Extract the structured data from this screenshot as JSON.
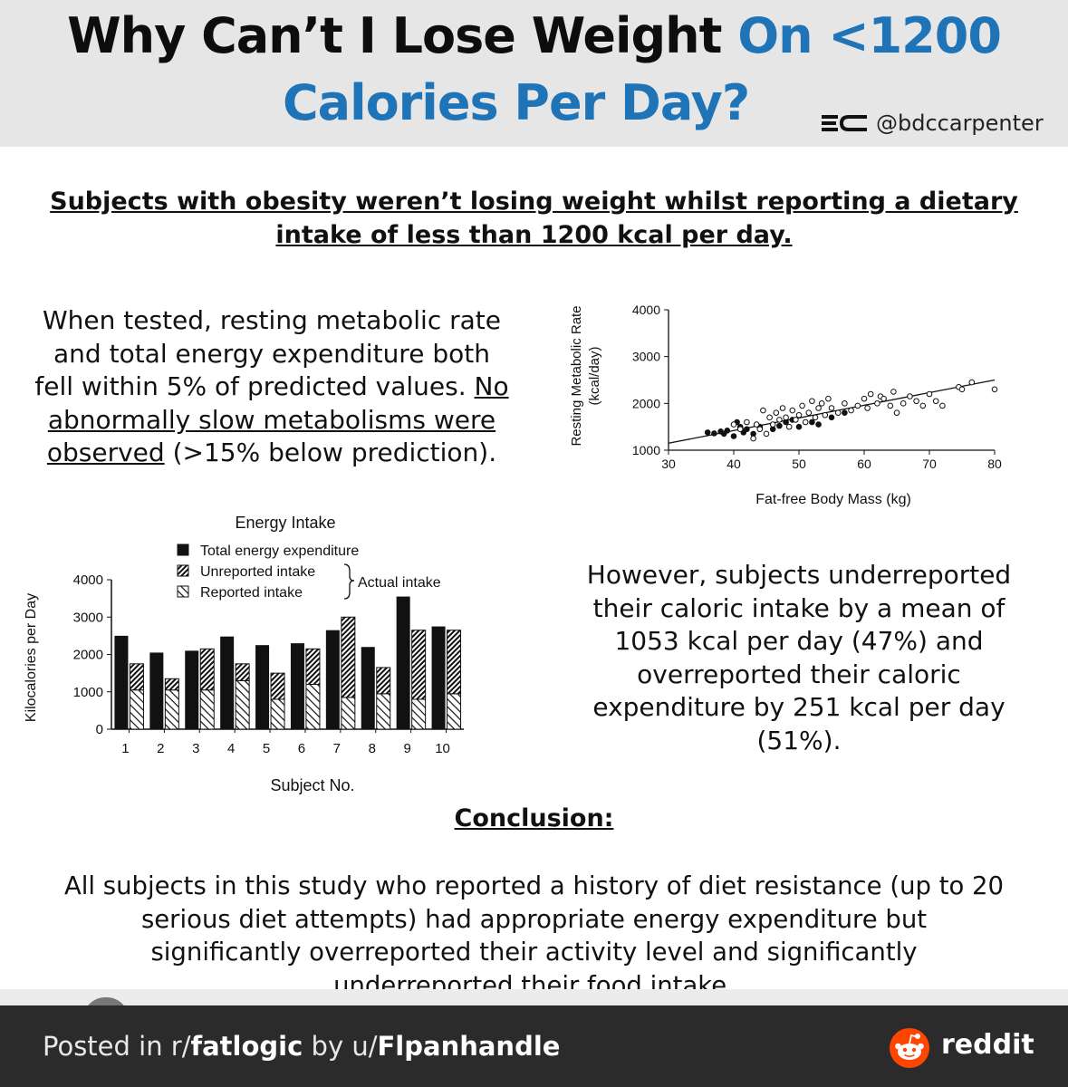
{
  "header": {
    "title_line1_black": "Why Can’t I Lose Weight ",
    "title_line1_blue": "On <1200",
    "title_line2": "Calories Per Day?",
    "handle": "@bdccarpenter",
    "brand_blue": "#1f73b7"
  },
  "subtitle_line1": "Subjects with obesity weren’t losing weight whilst reporting a dietary",
  "subtitle_line2": "intake of less than 1200 kcal per day.",
  "left_text": {
    "l1": "When tested, resting metabolic rate",
    "l2": "and total energy expenditure both",
    "l3_plain": "fell within 5% of predicted values. ",
    "l3_underlined": "No",
    "l4_underlined": "abnormally slow metabolisms were",
    "l5_underlined": "observed",
    "l5_plain": " (>15% below prediction)."
  },
  "right_text": {
    "l1": "However, subjects underreported",
    "l2": "their caloric intake by a mean of",
    "l3": "1053 kcal per day (47%) and",
    "l4": "overreported their caloric",
    "l5": "expenditure by 251 kcal per day",
    "l6": "(51%)."
  },
  "conclusion": {
    "heading": "Conclusion:",
    "l1": "All subjects in this study who reported a history of diet resistance (up to 20",
    "l2": "serious diet attempts) had appropriate energy expenditure but",
    "l3": "significantly overreported their activity level and significantly",
    "l4": "underreported their food intake."
  },
  "footer": {
    "posted_in": "Posted in r/",
    "subreddit": "fatlogic",
    "by": " by u/",
    "user": "Flpanhandle",
    "reddit_word": "reddit",
    "reddit_orange": "#ff4500"
  },
  "chart_data": [
    {
      "type": "scatter",
      "title": "",
      "xlabel": "Fat-free Body Mass (kg)",
      "ylabel_line1": "Resting Metabolic Rate",
      "ylabel_line2": "(kcal/day)",
      "xlim": [
        30,
        80
      ],
      "ylim": [
        1000,
        4000
      ],
      "xticks": [
        30,
        40,
        50,
        60,
        70,
        80
      ],
      "yticks": [
        1000,
        2000,
        3000,
        4000
      ],
      "grid": false,
      "series": [
        {
          "marker": "filled",
          "points": [
            [
              36,
              1380
            ],
            [
              37,
              1360
            ],
            [
              38,
              1400
            ],
            [
              38.5,
              1350
            ],
            [
              39,
              1420
            ],
            [
              40,
              1300
            ],
            [
              40.5,
              1600
            ],
            [
              41,
              1500
            ],
            [
              41.5,
              1380
            ],
            [
              42,
              1450
            ],
            [
              43,
              1350
            ],
            [
              44,
              1500
            ],
            [
              46,
              1450
            ],
            [
              47,
              1520
            ],
            [
              48,
              1600
            ],
            [
              49,
              1650
            ],
            [
              50,
              1500
            ],
            [
              52,
              1600
            ],
            [
              53,
              1550
            ],
            [
              55,
              1700
            ],
            [
              57,
              1800
            ]
          ]
        },
        {
          "marker": "open",
          "points": [
            [
              40,
              1550
            ],
            [
              41,
              1450
            ],
            [
              42,
              1600
            ],
            [
              43,
              1250
            ],
            [
              43.5,
              1550
            ],
            [
              44,
              1450
            ],
            [
              44.5,
              1850
            ],
            [
              45,
              1350
            ],
            [
              45.5,
              1700
            ],
            [
              46,
              1550
            ],
            [
              46.5,
              1800
            ],
            [
              47,
              1650
            ],
            [
              47.5,
              1900
            ],
            [
              48,
              1700
            ],
            [
              48.5,
              1500
            ],
            [
              49,
              1850
            ],
            [
              49.5,
              1650
            ],
            [
              50,
              1750
            ],
            [
              50.5,
              1950
            ],
            [
              51,
              1600
            ],
            [
              51.5,
              1800
            ],
            [
              52,
              2050
            ],
            [
              52.5,
              1700
            ],
            [
              53,
              1900
            ],
            [
              53.5,
              2000
            ],
            [
              54,
              1750
            ],
            [
              54.5,
              2100
            ],
            [
              55,
              1900
            ],
            [
              56,
              1800
            ],
            [
              57,
              2000
            ],
            [
              58,
              1850
            ],
            [
              59,
              1950
            ],
            [
              60,
              2100
            ],
            [
              60.5,
              1900
            ],
            [
              61,
              2200
            ],
            [
              62,
              2000
            ],
            [
              62.5,
              2150
            ],
            [
              63,
              2100
            ],
            [
              64,
              1950
            ],
            [
              64.5,
              2250
            ],
            [
              65,
              1800
            ],
            [
              66,
              2000
            ],
            [
              67,
              2150
            ],
            [
              68,
              2050
            ],
            [
              69,
              1950
            ],
            [
              70,
              2200
            ],
            [
              71,
              2050
            ],
            [
              72,
              1950
            ],
            [
              74.5,
              2350
            ],
            [
              75,
              2300
            ],
            [
              76.5,
              2450
            ],
            [
              80,
              2300
            ]
          ]
        }
      ],
      "regression_line": [
        [
          30,
          1150
        ],
        [
          80,
          2500
        ]
      ]
    },
    {
      "type": "bar",
      "title": "Energy Intake",
      "xlabel": "Subject No.",
      "ylabel": "Kilocalories per Day",
      "ylim": [
        0,
        4000
      ],
      "yticks": [
        0,
        1000,
        2000,
        3000,
        4000
      ],
      "categories": [
        "1",
        "2",
        "3",
        "4",
        "5",
        "6",
        "7",
        "8",
        "9",
        "10"
      ],
      "legend": {
        "items": [
          "Total energy expenditure",
          "Unreported intake",
          "Reported intake"
        ],
        "brace_label": "Actual intake",
        "placement": "top"
      },
      "series": [
        {
          "name": "Total energy expenditure",
          "values": [
            2500,
            2050,
            2100,
            2480,
            2250,
            2300,
            2650,
            2200,
            3550,
            2750
          ]
        },
        {
          "name": "Unreported intake",
          "values": [
            700,
            300,
            1100,
            450,
            700,
            950,
            2150,
            700,
            1850,
            1700
          ]
        },
        {
          "name": "Reported intake",
          "values": [
            1050,
            1050,
            1050,
            1300,
            800,
            1200,
            850,
            950,
            800,
            950
          ]
        }
      ]
    }
  ]
}
